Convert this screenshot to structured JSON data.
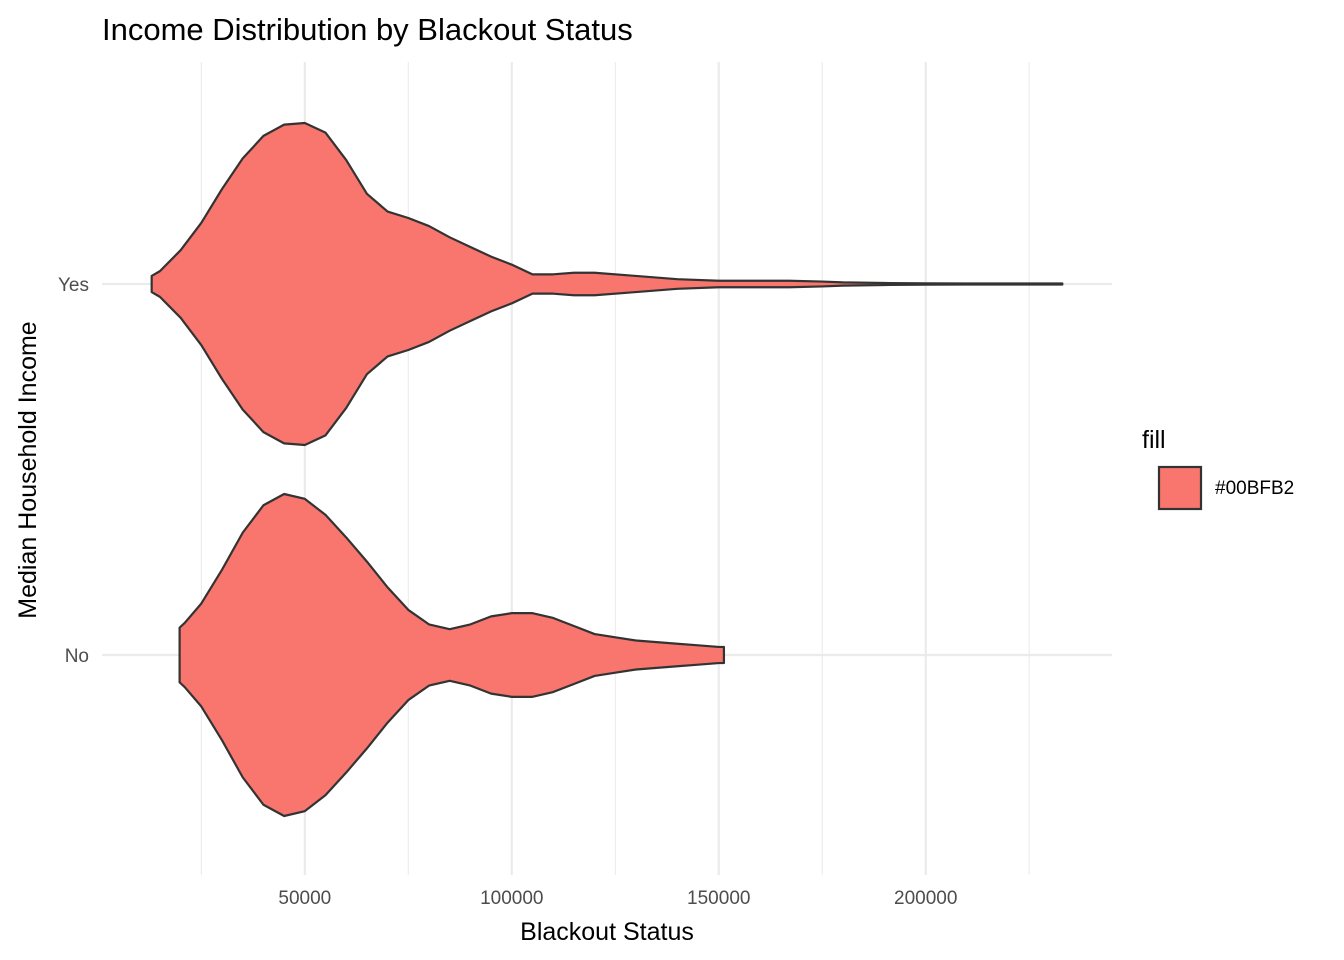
{
  "chart_data": {
    "type": "violin",
    "orientation": "horizontal",
    "title": "Income Distribution by Blackout Status",
    "xlabel": "Blackout Status",
    "ylabel": "Median Household Income",
    "categories": [
      "No",
      "Yes"
    ],
    "x_ticks": [
      50000,
      100000,
      150000,
      200000
    ],
    "x_tick_labels": [
      "50000",
      "100000",
      "150000",
      "200000"
    ],
    "xlim": [
      1000,
      245000
    ],
    "grid": true,
    "legend": {
      "title": "fill",
      "placement": "right",
      "entries": [
        {
          "label": "#00BFB2",
          "color": "#F8766D"
        }
      ]
    },
    "colors": {
      "fill": "#F8766D",
      "outline": "#333333",
      "grid": "#EBEBEB"
    },
    "series": [
      {
        "category": "No",
        "density_x": [
          19750,
          21000,
          25000,
          30000,
          35000,
          40000,
          45000,
          50000,
          55000,
          60000,
          65000,
          70000,
          75000,
          80000,
          85000,
          90000,
          95000,
          100000,
          105000,
          110000,
          115000,
          120000,
          125000,
          130000,
          135000,
          140000,
          145000,
          150000,
          151250
        ],
        "density_half_width": [
          0.17,
          0.2,
          0.32,
          0.53,
          0.76,
          0.93,
          1.0,
          0.97,
          0.87,
          0.73,
          0.58,
          0.42,
          0.28,
          0.19,
          0.16,
          0.19,
          0.24,
          0.26,
          0.26,
          0.23,
          0.18,
          0.13,
          0.11,
          0.09,
          0.08,
          0.07,
          0.06,
          0.05,
          0.05
        ]
      },
      {
        "category": "Yes",
        "density_x": [
          13000,
          15000,
          20000,
          25000,
          30000,
          35000,
          40000,
          45000,
          50000,
          55000,
          60000,
          65000,
          70000,
          75000,
          80000,
          85000,
          90000,
          95000,
          100000,
          105000,
          110000,
          115000,
          120000,
          130000,
          140000,
          150000,
          160000,
          167000,
          175000,
          180000,
          190000,
          200000,
          210000,
          220000,
          233000
        ],
        "density_half_width": [
          0.05,
          0.08,
          0.21,
          0.38,
          0.59,
          0.78,
          0.92,
          0.99,
          1.0,
          0.94,
          0.77,
          0.56,
          0.45,
          0.41,
          0.36,
          0.29,
          0.23,
          0.17,
          0.12,
          0.06,
          0.06,
          0.07,
          0.07,
          0.05,
          0.03,
          0.02,
          0.02,
          0.02,
          0.015,
          0.01,
          0.006,
          0.004,
          0.003,
          0.003,
          0.003
        ]
      }
    ]
  }
}
